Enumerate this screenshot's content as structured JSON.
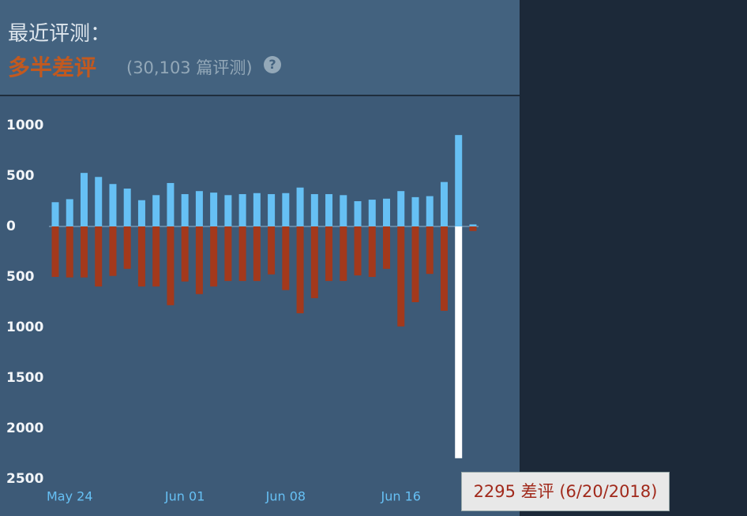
{
  "header": {
    "title": "最近评测：",
    "rating": "多半差评",
    "count": "(30,103 篇评测)",
    "help": "?"
  },
  "chart_data": {
    "type": "bar",
    "categories": [
      null,
      "May 24",
      null,
      null,
      null,
      null,
      null,
      null,
      null,
      "Jun 01",
      null,
      null,
      null,
      null,
      null,
      null,
      "Jun 08",
      null,
      null,
      null,
      null,
      null,
      null,
      null,
      "Jun 16",
      null,
      null,
      null,
      null,
      null
    ],
    "series": [
      {
        "color": "#66c0f4",
        "values": [
          240,
          270,
          530,
          490,
          420,
          375,
          260,
          310,
          430,
          320,
          350,
          335,
          310,
          320,
          330,
          320,
          330,
          385,
          320,
          320,
          310,
          250,
          265,
          275,
          350,
          290,
          300,
          440,
          905,
          20
        ]
      },
      {
        "color": "#a3391c",
        "values": [
          -500,
          -505,
          -505,
          -595,
          -490,
          -420,
          -595,
          -595,
          -780,
          -545,
          -670,
          -595,
          -540,
          -540,
          -540,
          -475,
          -630,
          -860,
          -710,
          -540,
          -540,
          -485,
          -500,
          -420,
          -990,
          -750,
          -470,
          -835,
          -2295,
          -45
        ]
      }
    ],
    "highlight": {
      "index": 28,
      "color": "#ffffff"
    },
    "tooltip": "2295 差评 (6/20/2018)",
    "ylim": [
      -2500,
      1000
    ],
    "yticks": [
      1000,
      500,
      0,
      {
        "value": -500,
        "label": "500"
      },
      {
        "value": -1000,
        "label": "1000"
      },
      {
        "value": -1500,
        "label": "1500"
      },
      {
        "value": -2000,
        "label": "2000"
      },
      {
        "value": -2500,
        "label": "2500"
      }
    ]
  }
}
